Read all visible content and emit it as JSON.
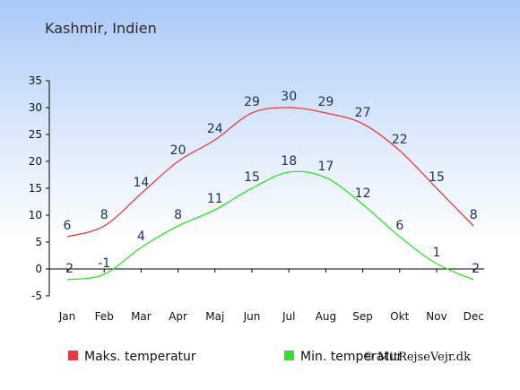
{
  "chart_data": {
    "type": "line",
    "title": "Kashmir, Indien",
    "categories": [
      "Jan",
      "Feb",
      "Mar",
      "Apr",
      "Maj",
      "Jun",
      "Jul",
      "Aug",
      "Sep",
      "Okt",
      "Nov",
      "Dec"
    ],
    "ylim": [
      -5,
      35
    ],
    "yticks": [
      -5,
      0,
      5,
      10,
      15,
      20,
      25,
      30,
      35
    ],
    "grid": false,
    "legend_placement": "bottom",
    "series": [
      {
        "name": "Maks. temperatur",
        "color": "#e83b3b",
        "values": [
          6,
          8,
          14,
          20,
          24,
          29,
          30,
          29,
          27,
          22,
          15,
          8
        ]
      },
      {
        "name": "Min. temperatur",
        "color": "#33e02a",
        "values": [
          -2,
          -1,
          4,
          8,
          11,
          15,
          18,
          17,
          12,
          6,
          1,
          -2
        ]
      }
    ],
    "credit": "© MitRejseVejr.dk"
  }
}
